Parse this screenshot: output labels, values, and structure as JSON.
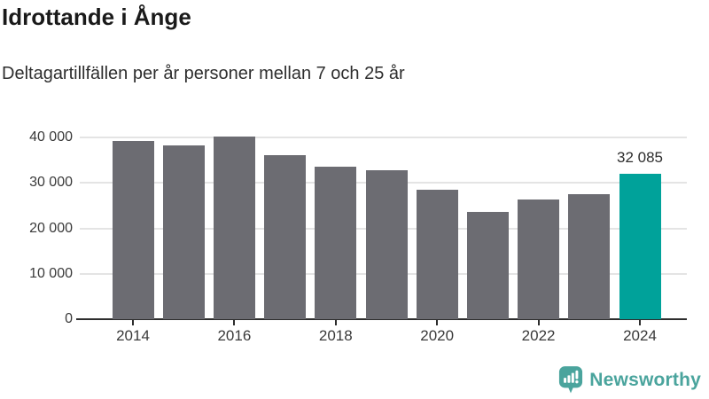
{
  "title": "Idrottande i Ånge",
  "subtitle": "Deltagartillfällen per år personer mellan 7 och 25 år",
  "branding": {
    "logo_text": "Newsworthy",
    "logo_icon": "bar-chart-speech-bubble-icon"
  },
  "colors": {
    "bar": "#6c6c72",
    "highlight": "#00a29a",
    "logo": "#4aa49d",
    "gridline": "#e4e4e4",
    "axis": "#2d2d2d",
    "tick_text": "#3a3a3a"
  },
  "chart_data": {
    "type": "bar",
    "categories": [
      "2014",
      "2015",
      "2016",
      "2017",
      "2018",
      "2019",
      "2020",
      "2021",
      "2022",
      "2023",
      "2024"
    ],
    "values": [
      39200,
      38200,
      40200,
      36100,
      33600,
      32800,
      28400,
      23700,
      26300,
      27600,
      32085
    ],
    "highlight_index": 10,
    "value_labels": [
      {
        "index": 10,
        "text": "32 085"
      }
    ],
    "yticks": [
      0,
      10000,
      20000,
      30000,
      40000
    ],
    "ytick_labels": [
      "0",
      "10 000",
      "20 000",
      "30 000",
      "40 000"
    ],
    "xtick_labels": [
      "2014",
      "2016",
      "2018",
      "2020",
      "2022",
      "2024"
    ],
    "ylim": [
      0,
      40000
    ],
    "xlabel": "",
    "ylabel": "",
    "grid": true,
    "legend": false
  }
}
